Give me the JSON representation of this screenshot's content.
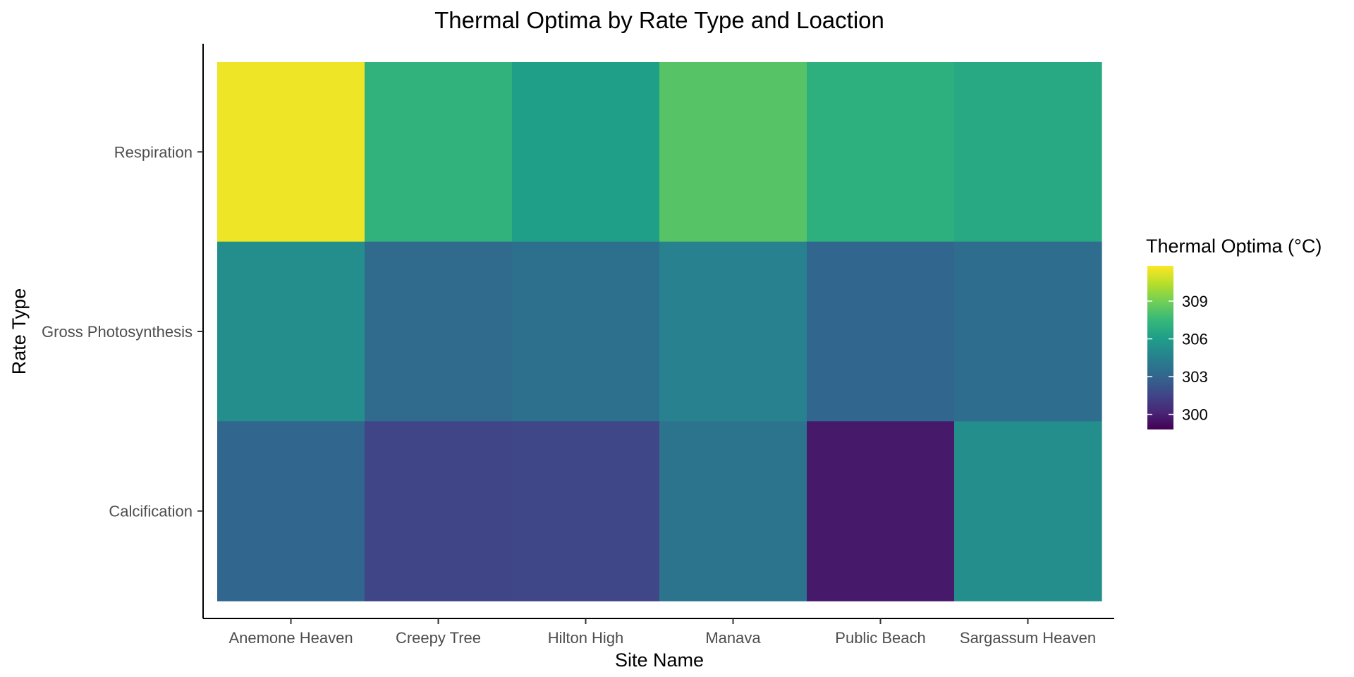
{
  "chart_data": {
    "type": "heatmap",
    "title": "Thermal Optima by Rate Type and Loaction",
    "xlabel": "Site Name",
    "ylabel": "Rate Type",
    "x_categories": [
      "Anemone Heaven",
      "Creepy Tree",
      "Hilton High",
      "Manava",
      "Public Beach",
      "Sargassum Heaven"
    ],
    "y_categories": [
      "Respiration",
      "Gross Photosynthesis",
      "Calcification"
    ],
    "values": [
      [
        311.5,
        307.2,
        306.1,
        308.3,
        307.0,
        306.6
      ],
      [
        305.2,
        303.3,
        303.6,
        304.5,
        303.1,
        303.4
      ],
      [
        303.1,
        301.5,
        301.6,
        303.8,
        299.7,
        305.2
      ]
    ],
    "color_scale": "viridis",
    "color_range": [
      298.8,
      311.8
    ],
    "colors": {
      "viridis": [
        "#440154",
        "#482878",
        "#3e4989",
        "#31688e",
        "#26828e",
        "#1f9e89",
        "#35b779",
        "#6ece58",
        "#b5de2b",
        "#fde725"
      ]
    },
    "legend": {
      "title": "Thermal Optima (°C)",
      "ticks": [
        300,
        303,
        306,
        309
      ],
      "position": "right"
    },
    "grid": false
  }
}
